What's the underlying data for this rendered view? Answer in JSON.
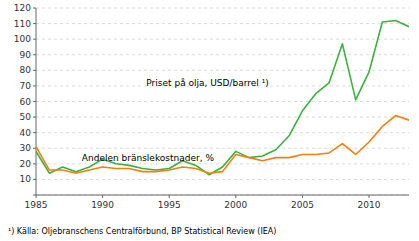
{
  "chart_data": {
    "type": "line",
    "x": [
      1985,
      1986,
      1987,
      1988,
      1989,
      1990,
      1991,
      1992,
      1993,
      1994,
      1995,
      1996,
      1997,
      1998,
      1999,
      2000,
      2001,
      2002,
      2003,
      2004,
      2005,
      2006,
      2007,
      2008,
      2009,
      2010,
      2011,
      2012,
      2013
    ],
    "series": [
      {
        "name": "Priset på olja, USD/barrel  ¹)",
        "color": "#3CB040",
        "values": [
          28,
          14,
          18,
          15,
          18,
          23,
          20,
          19,
          17,
          16,
          17,
          22,
          19,
          13,
          18,
          28,
          24,
          25,
          29,
          38,
          54,
          65,
          72,
          97,
          61,
          79,
          111,
          112,
          108
        ]
      },
      {
        "name": "Andelen bränslekostnader, %",
        "color": "#F08010",
        "values": [
          31,
          16,
          16,
          14,
          16,
          18,
          17,
          17,
          15,
          15,
          16,
          18,
          17,
          14,
          15,
          26,
          24,
          22,
          24,
          24,
          26,
          26,
          27,
          33,
          26,
          34,
          44,
          51,
          48
        ]
      }
    ],
    "xlim": [
      1985,
      2013
    ],
    "xticks": [
      1985,
      1990,
      1995,
      2000,
      2005,
      2010
    ],
    "ylim": [
      0,
      120
    ],
    "yticks": [
      {
        "value": 0,
        "label": null
      },
      10,
      20,
      30,
      40,
      50,
      60,
      70,
      80,
      90,
      100,
      110,
      120
    ],
    "grid": true,
    "annotations": [
      "¹)  Källa: Oljebranschens Centralförbund, BP Statistical Review (IEA)"
    ]
  }
}
